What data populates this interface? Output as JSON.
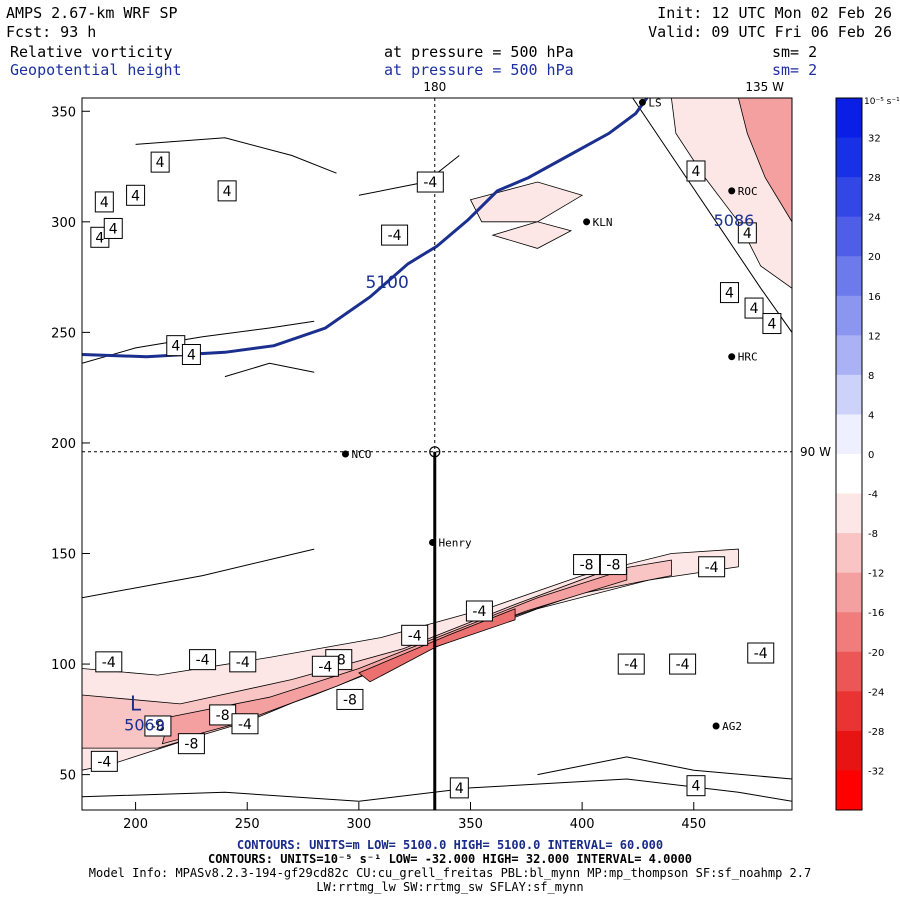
{
  "header": {
    "model": "AMPS 2.67-km WRF SP",
    "forecast": "Fcst:   93 h",
    "init": "Init: 12 UTC Mon 02 Feb 26",
    "valid": "Valid: 09 UTC Fri 06 Feb 26",
    "field1_name": "Relative vorticity",
    "field1_level": "at pressure =  500 hPa",
    "field1_smooth": "sm= 2",
    "field2_name": "Geopotential height",
    "field2_level": "at pressure =  500 hPa",
    "field2_smooth": "sm= 2"
  },
  "footer": {
    "line1_blue": "CONTOURS:  UNITS=m  LOW=  5100.0       HIGH=  5100.0       INTERVAL=   60.000",
    "line2": "CONTOURS:  UNITS=10⁻⁵ s⁻¹  LOW= -32.000       HIGH=  32.000      INTERVAL=   4.0000",
    "line3": "Model Info: MPASv8.2.3-194-gf29cd82c CU:cu_grell_freitas PBL:bl_mynn MP:mp_thompson SF:sf_noahmp 2.7",
    "line4": "LW:rrtmg_lw SW:rrtmg_sw SFLAY:sf_mynn"
  },
  "chart_data": {
    "type": "heatmap",
    "title": "Relative vorticity / Geopotential height at 500 hPa",
    "xlim": [
      176,
      494
    ],
    "ylim": [
      34,
      356
    ],
    "x_ticks": [
      200,
      250,
      300,
      350,
      400,
      450
    ],
    "y_ticks": [
      50,
      100,
      150,
      200,
      250,
      300,
      350
    ],
    "grid_labels": {
      "meridian_180": "180",
      "meridian_135w": "135 W",
      "parallel_90w": "90 W"
    },
    "colorbar": {
      "unit_label": "10⁻⁵ s⁻¹",
      "ticks": [
        32,
        28,
        24,
        20,
        16,
        12,
        8,
        4,
        0,
        -4,
        -8,
        -12,
        -16,
        -20,
        -24,
        -28,
        -32
      ],
      "colors": [
        "#0a1ee6",
        "#1830e6",
        "#3346e6",
        "#4e5ee8",
        "#6c7aec",
        "#8b96f0",
        "#aab2f5",
        "#cdd2fa",
        "#eef0ff",
        "#ffffff",
        "#fde6e6",
        "#f8c4c4",
        "#f4a0a0",
        "#f07c7c",
        "#ec5656",
        "#ea3434",
        "#e81414",
        "#ff0000"
      ]
    },
    "height_contours": [
      {
        "value": 5100,
        "label": "5100",
        "points": [
          [
            176,
            240
          ],
          [
            205,
            239
          ],
          [
            240,
            241
          ],
          [
            262,
            244
          ],
          [
            285,
            252
          ],
          [
            305,
            266
          ],
          [
            322,
            281
          ],
          [
            335,
            289
          ],
          [
            349,
            301
          ],
          [
            362,
            314
          ],
          [
            376,
            320
          ],
          [
            394,
            330
          ],
          [
            412,
            340
          ],
          [
            424,
            349
          ],
          [
            429,
            356
          ]
        ]
      }
    ],
    "lows": [
      {
        "symbol": "L",
        "x": 200,
        "y": 79
      },
      {
        "label": "5069",
        "x": 204,
        "y": 70
      },
      {
        "label": "5086",
        "x": 468,
        "y": 298
      }
    ],
    "vorticity_labels": [
      {
        "v": "4",
        "x": 211,
        "y": 327
      },
      {
        "v": "4",
        "x": 200,
        "y": 312
      },
      {
        "v": "4",
        "x": 241,
        "y": 314
      },
      {
        "v": "4",
        "x": 186,
        "y": 309
      },
      {
        "v": "4",
        "x": 184,
        "y": 293
      },
      {
        "v": "4",
        "x": 218,
        "y": 244
      },
      {
        "v": "4",
        "x": 225,
        "y": 240
      },
      {
        "v": "4",
        "x": 190,
        "y": 297
      },
      {
        "v": "-4",
        "x": 332,
        "y": 318
      },
      {
        "v": "-4",
        "x": 316,
        "y": 294
      },
      {
        "v": "4",
        "x": 451,
        "y": 323
      },
      {
        "v": "4",
        "x": 474,
        "y": 295
      },
      {
        "v": "4",
        "x": 466,
        "y": 268
      },
      {
        "v": "4",
        "x": 477,
        "y": 261
      },
      {
        "v": "4",
        "x": 485,
        "y": 254
      },
      {
        "v": "-4",
        "x": 458,
        "y": 144
      },
      {
        "v": "-8",
        "x": 402,
        "y": 145
      },
      {
        "v": "-8",
        "x": 414,
        "y": 145
      },
      {
        "v": "-4",
        "x": 354,
        "y": 124
      },
      {
        "v": "-4",
        "x": 325,
        "y": 113
      },
      {
        "v": "-8",
        "x": 291,
        "y": 102
      },
      {
        "v": "-4",
        "x": 248,
        "y": 101
      },
      {
        "v": "-4",
        "x": 230,
        "y": 102
      },
      {
        "v": "-4",
        "x": 285,
        "y": 99
      },
      {
        "v": "-4",
        "x": 188,
        "y": 101
      },
      {
        "v": "-4",
        "x": 422,
        "y": 100
      },
      {
        "v": "-4",
        "x": 445,
        "y": 100
      },
      {
        "v": "-4",
        "x": 480,
        "y": 105
      },
      {
        "v": "-8",
        "x": 296,
        "y": 84
      },
      {
        "v": "-8",
        "x": 239,
        "y": 77
      },
      {
        "v": "-8",
        "x": 210,
        "y": 72
      },
      {
        "v": "-4",
        "x": 249,
        "y": 73
      },
      {
        "v": "-8",
        "x": 225,
        "y": 64
      },
      {
        "v": "-4",
        "x": 186,
        "y": 56
      },
      {
        "v": "4",
        "x": 345,
        "y": 44
      },
      {
        "v": "4",
        "x": 451,
        "y": 45
      }
    ],
    "stations": [
      {
        "name": "LS",
        "x": 427,
        "y": 354
      },
      {
        "name": "ROC",
        "x": 467,
        "y": 314
      },
      {
        "name": "KLN",
        "x": 402,
        "y": 300
      },
      {
        "name": "HRC",
        "x": 467,
        "y": 239
      },
      {
        "name": "NCO",
        "x": 294,
        "y": 195
      },
      {
        "name": "Henry",
        "x": 333,
        "y": 155
      },
      {
        "name": "AG2",
        "x": 460,
        "y": 72
      }
    ],
    "cross_section": {
      "x": 334,
      "y0": 34,
      "y1": 196
    }
  }
}
